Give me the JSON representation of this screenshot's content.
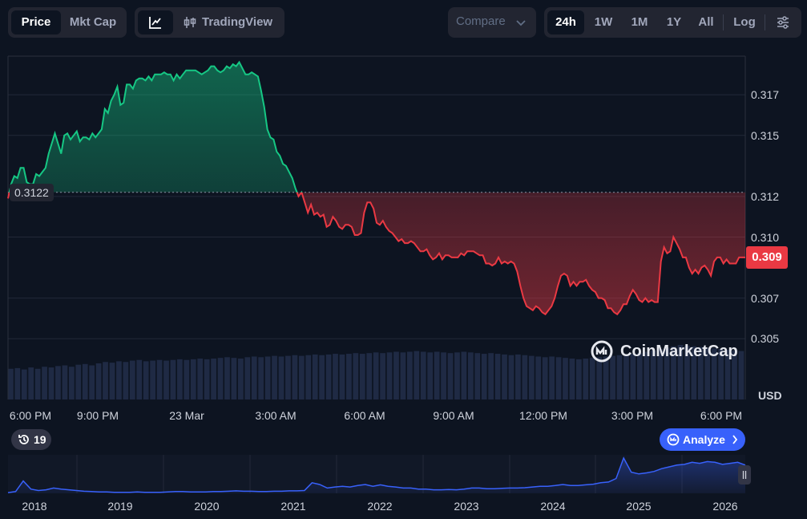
{
  "toolbar": {
    "price_label": "Price",
    "mktcap_label": "Mkt Cap",
    "tradingview_label": "TradingView",
    "compare_label": "Compare",
    "ranges": [
      "24h",
      "1W",
      "1M",
      "1Y",
      "All"
    ],
    "active_range": "24h",
    "log_label": "Log",
    "line_icon": "line-chart-icon",
    "candle_icon": "candlestick-icon",
    "settings_icon": "sliders-icon"
  },
  "chart_data": {
    "type": "line",
    "y_ticks": [
      "0.317",
      "0.315",
      "0.312",
      "0.310",
      "0.307",
      "0.305"
    ],
    "y_unit": "USD",
    "x_ticks": [
      "6:00 PM",
      "9:00 PM",
      "23 Mar",
      "3:00 AM",
      "6:00 AM",
      "9:00 AM",
      "12:00 PM",
      "3:00 PM",
      "6:00 PM"
    ],
    "baseline_value": "0.3122",
    "current_value": "0.309",
    "ylim": [
      0.3043,
      0.3187
    ],
    "series": [
      {
        "values": [
          0.3119,
          0.3126,
          0.313,
          0.3129,
          0.3134,
          0.3134,
          0.3127,
          0.3126,
          0.3126,
          0.3131,
          0.313,
          0.3132,
          0.3134,
          0.3141,
          0.3146,
          0.3151,
          0.3146,
          0.3141,
          0.315,
          0.3151,
          0.3148,
          0.315,
          0.3152,
          0.3147,
          0.3149,
          0.3149,
          0.3148,
          0.3151,
          0.3149,
          0.3151,
          0.3153,
          0.3163,
          0.3161,
          0.3167,
          0.317,
          0.3174,
          0.3165,
          0.3166,
          0.3175,
          0.3175,
          0.3173,
          0.3177,
          0.3178,
          0.3178,
          0.3177,
          0.3179,
          0.3177,
          0.318,
          0.318,
          0.318,
          0.3181,
          0.318,
          0.318,
          0.3177,
          0.318,
          0.3178,
          0.318,
          0.3182,
          0.3182,
          0.3182,
          0.3182,
          0.3181,
          0.318,
          0.3181,
          0.3182,
          0.3184,
          0.3184,
          0.3182,
          0.3181,
          0.3182,
          0.3184,
          0.3183,
          0.3185,
          0.3184,
          0.3186,
          0.3183,
          0.318,
          0.318,
          0.3181,
          0.318,
          0.3179,
          0.3172,
          0.3164,
          0.3153,
          0.3149,
          0.3148,
          0.3142,
          0.314,
          0.3136,
          0.3135,
          0.3132,
          0.3129,
          0.3124,
          0.312,
          0.3122,
          0.3117,
          0.3112,
          0.3116,
          0.3111,
          0.3112,
          0.311,
          0.3111,
          0.3105,
          0.3106,
          0.311,
          0.3108,
          0.3105,
          0.3104,
          0.3106,
          0.3106,
          0.3105,
          0.3101,
          0.3101,
          0.3102,
          0.3112,
          0.3117,
          0.3117,
          0.3114,
          0.3107,
          0.3106,
          0.3108,
          0.3105,
          0.3103,
          0.3102,
          0.31,
          0.3098,
          0.3099,
          0.3097,
          0.3097,
          0.3098,
          0.3097,
          0.3095,
          0.3093,
          0.3093,
          0.3094,
          0.3091,
          0.3089,
          0.309,
          0.3092,
          0.3089,
          0.3091,
          0.3091,
          0.309,
          0.309,
          0.309,
          0.3092,
          0.3091,
          0.3093,
          0.3093,
          0.3093,
          0.3092,
          0.3091,
          0.3091,
          0.3087,
          0.3087,
          0.3086,
          0.3087,
          0.309,
          0.3087,
          0.3088,
          0.3087,
          0.3088,
          0.3087,
          0.3083,
          0.3076,
          0.307,
          0.3066,
          0.3065,
          0.3064,
          0.3066,
          0.3065,
          0.3063,
          0.3062,
          0.3064,
          0.3066,
          0.307,
          0.3076,
          0.3081,
          0.3082,
          0.3081,
          0.3076,
          0.3078,
          0.3076,
          0.3078,
          0.3078,
          0.3079,
          0.3076,
          0.3074,
          0.3073,
          0.307,
          0.307,
          0.3069,
          0.3065,
          0.3065,
          0.3063,
          0.3062,
          0.3064,
          0.3067,
          0.3067,
          0.3071,
          0.3074,
          0.3072,
          0.3069,
          0.3068,
          0.307,
          0.3068,
          0.3069,
          0.3068,
          0.3068,
          0.3088,
          0.3095,
          0.3092,
          0.3093,
          0.31,
          0.3097,
          0.3094,
          0.309,
          0.309,
          0.3085,
          0.3082,
          0.3084,
          0.3082,
          0.3085,
          0.3086,
          0.3084,
          0.3081,
          0.3088,
          0.309,
          0.309,
          0.3087,
          0.3089,
          0.3087,
          0.3087,
          0.3087,
          0.309,
          0.309,
          0.309
        ]
      }
    ],
    "volume": [
      0.45,
      0.46,
      0.44,
      0.47,
      0.45,
      0.48,
      0.47,
      0.49,
      0.5,
      0.48,
      0.51,
      0.52,
      0.5,
      0.53,
      0.55,
      0.54,
      0.56,
      0.55,
      0.57,
      0.58,
      0.56,
      0.57,
      0.58,
      0.57,
      0.58,
      0.59,
      0.58,
      0.59,
      0.6,
      0.59,
      0.6,
      0.61,
      0.62,
      0.61,
      0.6,
      0.62,
      0.63,
      0.62,
      0.63,
      0.64,
      0.63,
      0.64,
      0.65,
      0.64,
      0.65,
      0.66,
      0.65,
      0.66,
      0.67,
      0.66,
      0.67,
      0.68,
      0.67,
      0.68,
      0.69,
      0.68,
      0.69,
      0.7,
      0.69,
      0.7,
      0.71,
      0.7,
      0.69,
      0.7,
      0.69,
      0.68,
      0.69,
      0.7,
      0.69,
      0.68,
      0.67,
      0.68,
      0.67,
      0.66,
      0.65,
      0.66,
      0.65,
      0.64,
      0.63,
      0.62,
      0.63,
      0.62,
      0.61,
      0.6,
      0.59,
      0.6,
      0.61,
      0.62,
      0.63,
      0.64,
      0.65,
      0.66,
      0.67,
      0.68,
      0.7,
      0.72,
      0.74,
      0.76,
      0.78,
      0.8,
      0.79,
      0.78,
      0.77,
      0.76,
      0.75,
      0.74,
      0.73,
      0.72,
      0.71
    ],
    "watermark": "CoinMarketCap"
  },
  "history_badge": {
    "icon": "history-icon",
    "count": "19"
  },
  "analyze_button": {
    "icon": "coinmarketcap-icon",
    "label": "Analyze",
    "chevron": "chevron-right-icon"
  },
  "overview_chart": {
    "type": "area",
    "years": [
      "2018",
      "2019",
      "2020",
      "2021",
      "2022",
      "2023",
      "2024",
      "2025",
      "2026"
    ],
    "values": [
      0.02,
      0.05,
      0.35,
      0.12,
      0.08,
      0.1,
      0.15,
      0.12,
      0.1,
      0.08,
      0.06,
      0.05,
      0.04,
      0.04,
      0.03,
      0.03,
      0.03,
      0.04,
      0.03,
      0.03,
      0.03,
      0.04,
      0.05,
      0.05,
      0.04,
      0.04,
      0.04,
      0.05,
      0.05,
      0.06,
      0.07,
      0.06,
      0.06,
      0.05,
      0.05,
      0.06,
      0.06,
      0.07,
      0.07,
      0.08,
      0.3,
      0.25,
      0.15,
      0.18,
      0.2,
      0.18,
      0.22,
      0.25,
      0.2,
      0.24,
      0.2,
      0.18,
      0.15,
      0.15,
      0.12,
      0.12,
      0.1,
      0.1,
      0.11,
      0.1,
      0.12,
      0.15,
      0.15,
      0.13,
      0.13,
      0.14,
      0.15,
      0.15,
      0.16,
      0.18,
      0.2,
      0.2,
      0.22,
      0.25,
      0.22,
      0.22,
      0.24,
      0.26,
      0.3,
      0.32,
      0.42,
      1.0,
      0.6,
      0.55,
      0.58,
      0.62,
      0.7,
      0.75,
      0.8,
      0.82,
      0.88,
      0.85,
      0.9,
      0.88,
      0.82,
      0.85,
      0.88,
      0.8
    ],
    "handle_icon": "drag-handle-icon"
  },
  "colors": {
    "background": "#0d1421",
    "up": "#16c784",
    "down": "#ea3943",
    "accent": "#3861fb",
    "volume": "#1f2a44"
  }
}
